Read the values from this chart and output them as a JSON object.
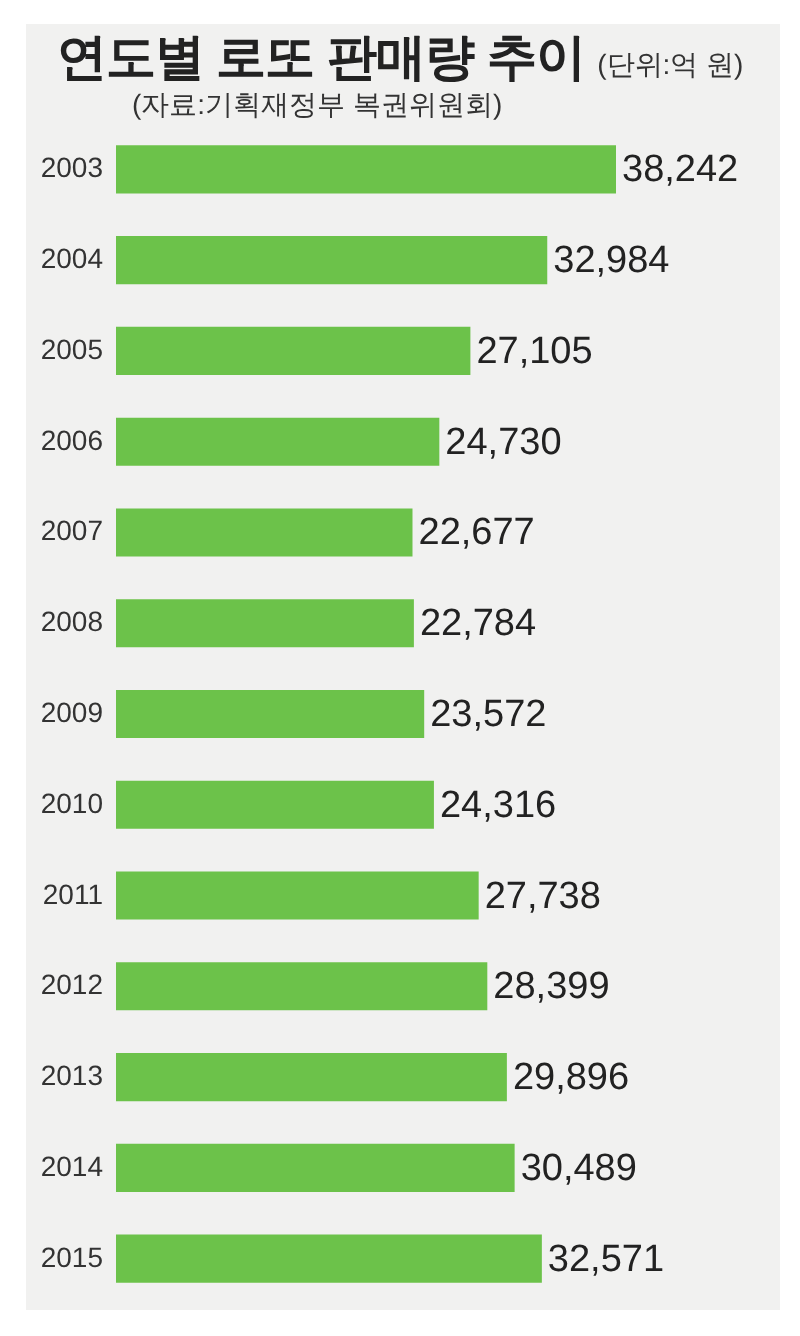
{
  "chart_data": {
    "type": "bar",
    "orientation": "horizontal",
    "title": "연도별 로또 판매량 추이",
    "subtitle": "(단위:억 원)",
    "annotations": [
      "(자료:기획재정부 복권위원회)"
    ],
    "categories": [
      "2003",
      "2004",
      "2005",
      "2006",
      "2007",
      "2008",
      "2009",
      "2010",
      "2011",
      "2012",
      "2013",
      "2014",
      "2015"
    ],
    "values": [
      38242,
      32984,
      27105,
      24730,
      22677,
      22784,
      23572,
      24316,
      27738,
      28399,
      29896,
      30489,
      32571
    ],
    "value_labels": [
      "38,242",
      "32,984",
      "27,105",
      "24,730",
      "22,677",
      "22,784",
      "23,572",
      "24,316",
      "27,738",
      "28,399",
      "29,896",
      "30,489",
      "32,571"
    ],
    "color": "#6cc24a",
    "tick_labels": "y"
  }
}
